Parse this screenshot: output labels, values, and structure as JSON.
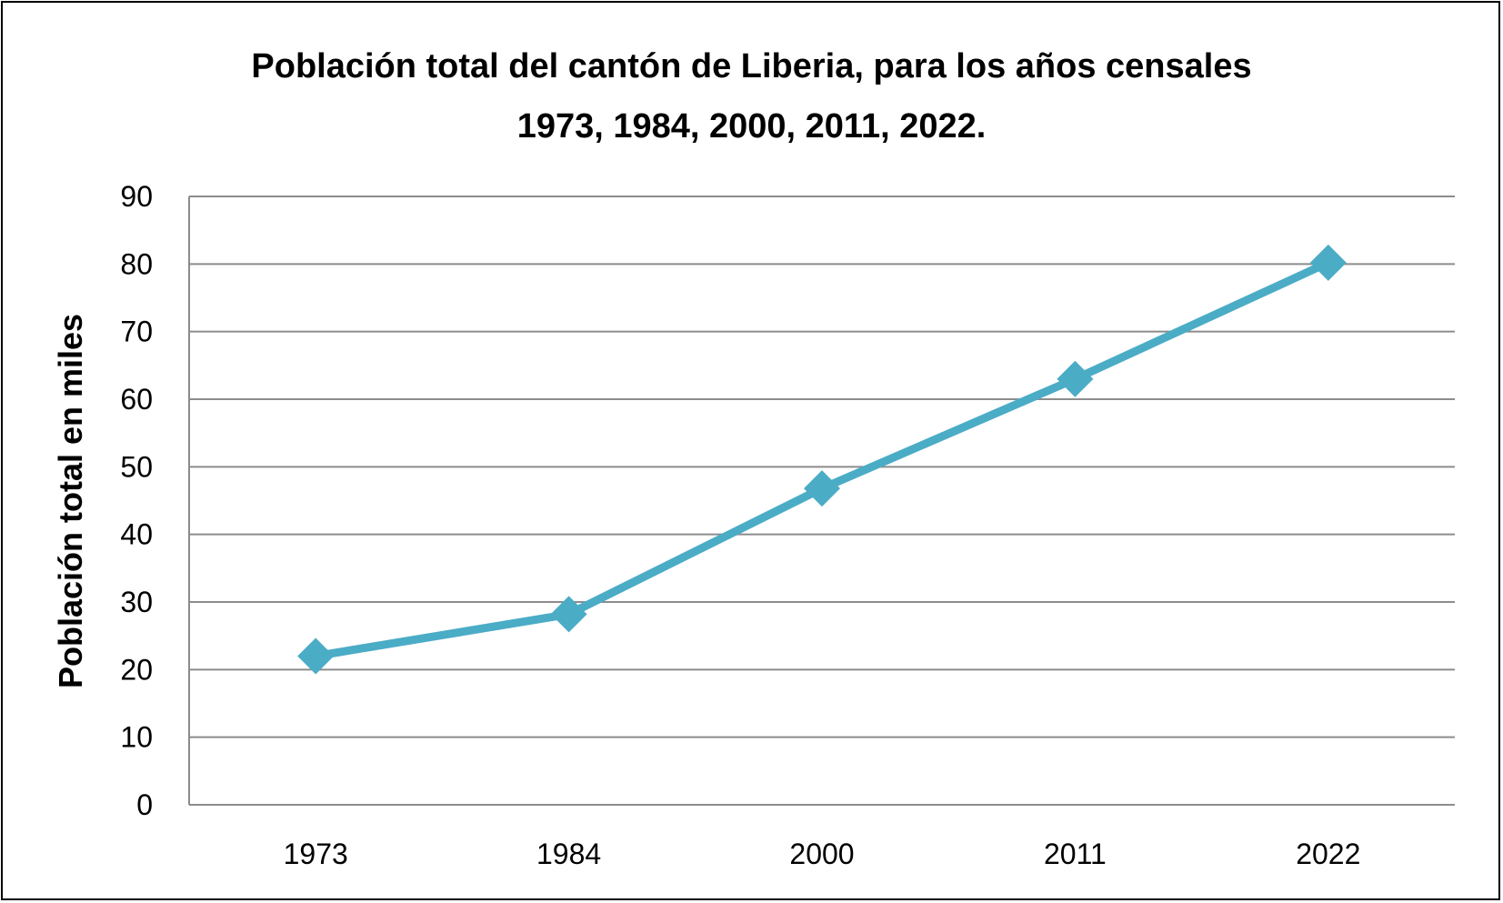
{
  "chart_data": {
    "type": "line",
    "title_lines": [
      "Población total del cantón de Liberia, para los años censales",
      "1973, 1984, 2000, 2011, 2022."
    ],
    "xlabel": "",
    "ylabel": "Población total en miles",
    "categories": [
      "1973",
      "1984",
      "2000",
      "2011",
      "2022"
    ],
    "series": [
      {
        "values": [
          22,
          28.2,
          46.8,
          63,
          80.2
        ],
        "color": "#4BACC6",
        "marker": "diamond"
      }
    ],
    "ylim": [
      0,
      90
    ],
    "yticks": [
      "0",
      "10",
      "20",
      "30",
      "40",
      "50",
      "60",
      "70",
      "80",
      "90"
    ],
    "grid": true,
    "legend": "none"
  }
}
